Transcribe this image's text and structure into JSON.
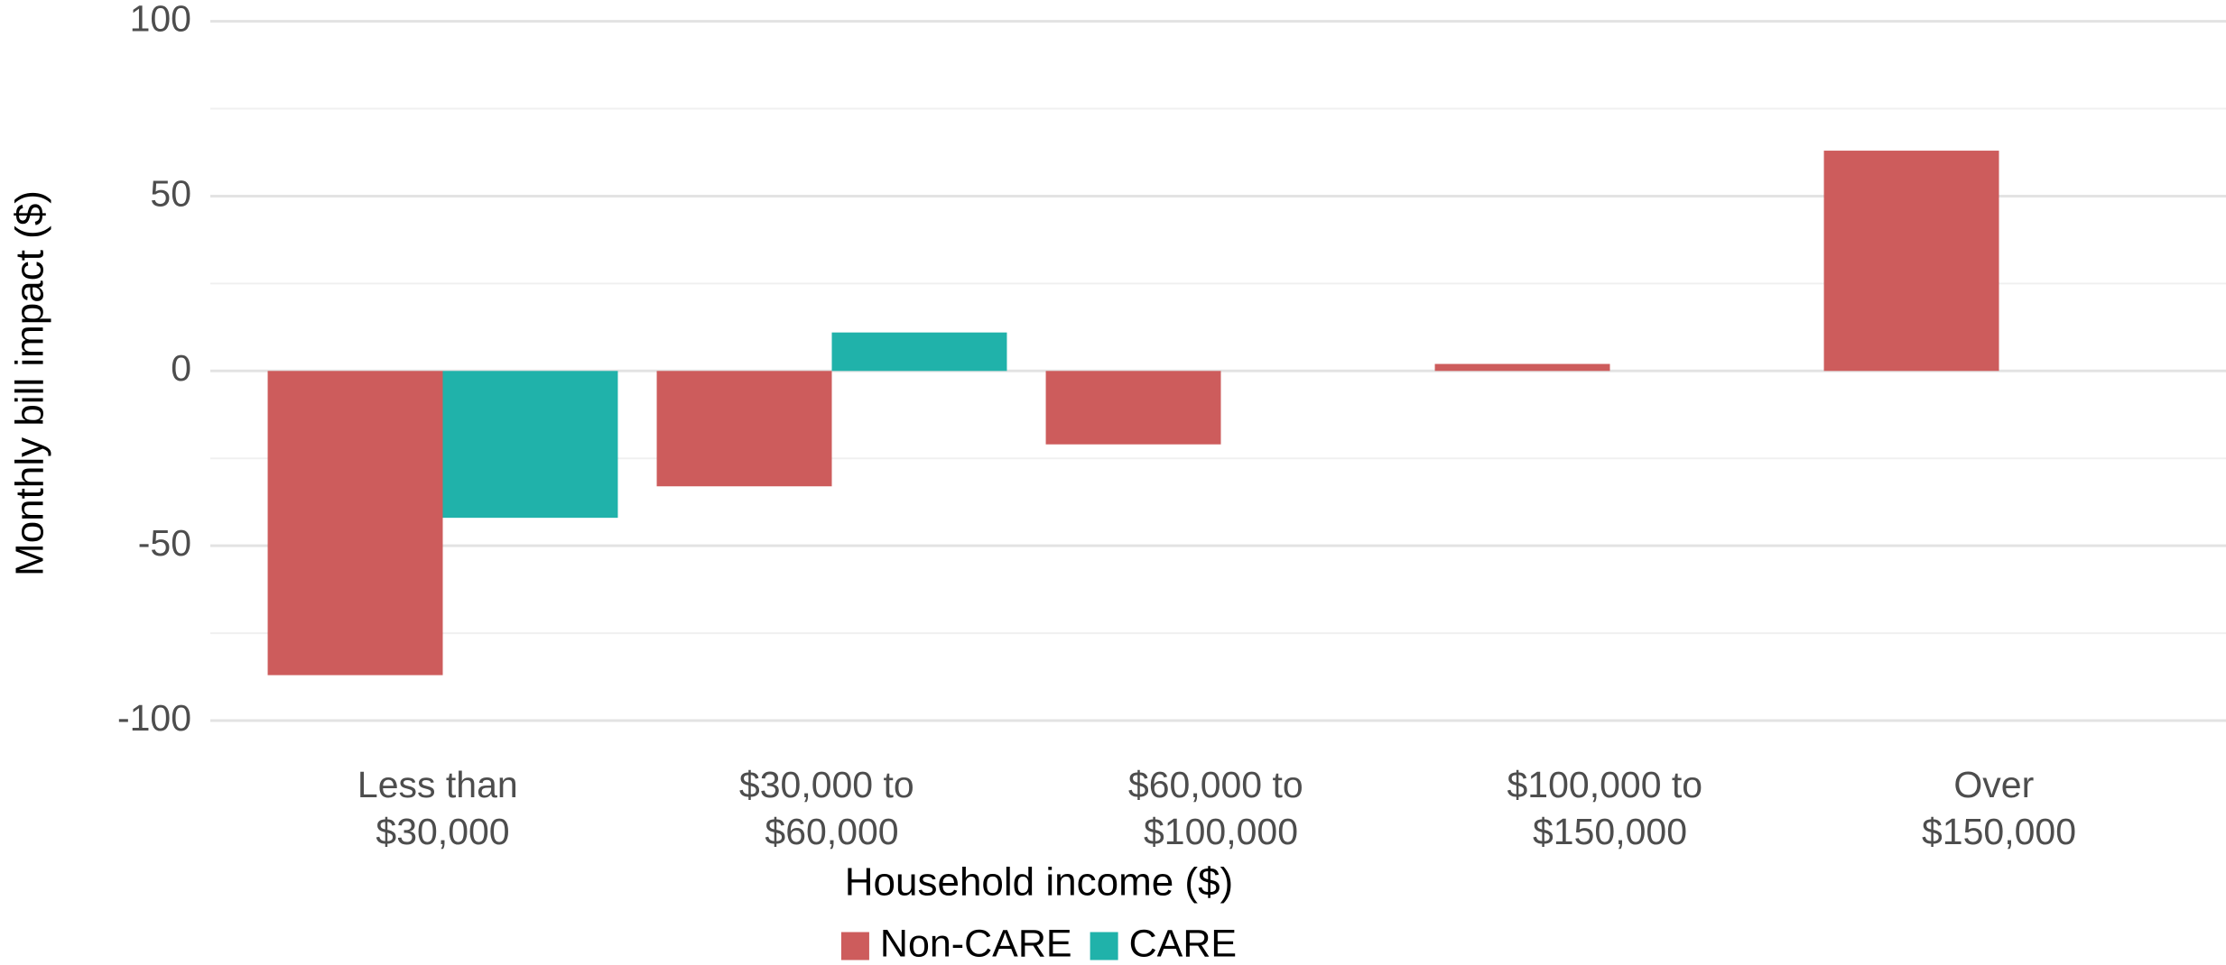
{
  "chart_data": {
    "type": "bar",
    "x_label": "Household income ($)",
    "y_label": "Monthly bill impact ($)",
    "categories": [
      "Less than $30,000",
      "$30,000 to $60,000",
      "$60,000 to $100,000",
      "$100,000 to $150,000",
      "Over $150,000"
    ],
    "series": [
      {
        "name": "Non-CARE",
        "color": "#cd5c5c",
        "values": [
          -87,
          -33,
          -21,
          2,
          63
        ]
      },
      {
        "name": "CARE",
        "color": "#20b2aa",
        "values": [
          -42,
          11,
          null,
          null,
          null
        ]
      }
    ],
    "ylim": [
      -100,
      100
    ],
    "yticks": [
      -100,
      -50,
      0,
      50,
      100
    ],
    "minor_yticks": [
      -75,
      -25,
      25,
      75
    ],
    "grid": true,
    "legend": "bottom"
  }
}
